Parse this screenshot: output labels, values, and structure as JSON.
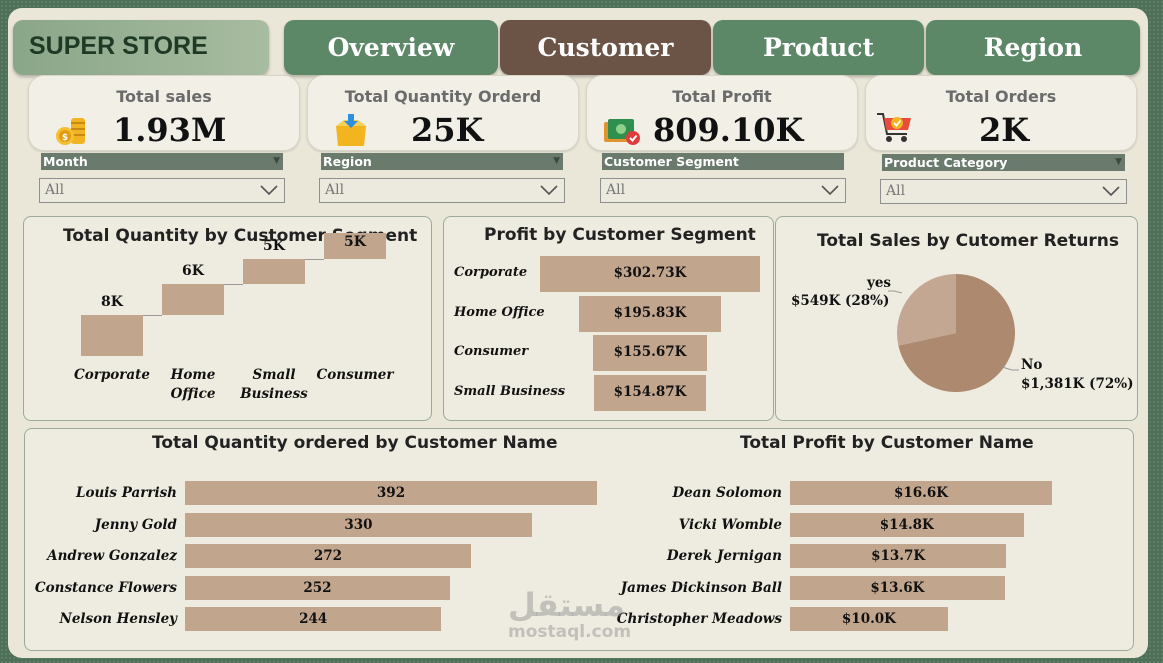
{
  "brand": "SUPER STORE",
  "nav": {
    "tabs": [
      {
        "label": "Overview",
        "active": false
      },
      {
        "label": "Customer",
        "active": true
      },
      {
        "label": "Product",
        "active": false
      },
      {
        "label": "Region",
        "active": false
      }
    ]
  },
  "kpis": [
    {
      "title": "Total sales",
      "value": "1.93M",
      "icon": "coins-icon"
    },
    {
      "title": "Total Quantity Orderd",
      "value": "25K",
      "icon": "box-icon"
    },
    {
      "title": "Total Profit",
      "value": "809.10K",
      "icon": "money-icon"
    },
    {
      "title": "Total Orders",
      "value": "2K",
      "icon": "cart-icon"
    }
  ],
  "slicers": [
    {
      "title": "Month",
      "value": "All"
    },
    {
      "title": "Region",
      "value": "All"
    },
    {
      "title": "Customer Segment",
      "value": "All"
    },
    {
      "title": "Product Category",
      "value": "All"
    }
  ],
  "colors": {
    "bar": "#c2a58d",
    "pie_no": "#ad8a6f",
    "pie_yes": "#c3a792",
    "tab_active": "#6b5446",
    "tab": "#5d8868"
  },
  "chart_data": [
    {
      "type": "bar",
      "chart": "waterfall",
      "title": "Total Quantity by Customer Segment",
      "categories": [
        "Corporate",
        "Home Office",
        "Small Business",
        "Consumer"
      ],
      "category_lines": [
        [
          "Corporate"
        ],
        [
          "Home",
          "Office"
        ],
        [
          "Small",
          "Business"
        ],
        [
          "Consumer"
        ]
      ],
      "values": [
        8,
        6,
        5,
        5
      ],
      "labels": [
        "8K",
        "6K",
        "5K",
        "5K"
      ]
    },
    {
      "type": "bar",
      "chart": "funnel",
      "title": "Profit by Customer Segment",
      "categories": [
        "Corporate",
        "Home Office",
        "Consumer",
        "Small Business"
      ],
      "values": [
        302.73,
        195.83,
        155.67,
        154.87
      ],
      "labels": [
        "$302.73K",
        "$195.83K",
        "$155.67K",
        "$154.87K"
      ]
    },
    {
      "type": "pie",
      "title": "Total Sales by Cutomer Returns",
      "categories": [
        "No",
        "yes"
      ],
      "values": [
        1381,
        549
      ],
      "percent": [
        72,
        28
      ],
      "labels": [
        "$1,381K (72%)",
        "$549K (28%)"
      ]
    },
    {
      "type": "bar",
      "chart": "horizontal",
      "title": "Total Quantity ordered by Customer Name",
      "categories": [
        "Louis Parrish",
        "Jenny Gold",
        "Andrew Gonzalez",
        "Constance Flowers",
        "Nelson Hensley"
      ],
      "values": [
        392,
        330,
        272,
        252,
        244
      ],
      "labels": [
        "392",
        "330",
        "272",
        "252",
        "244"
      ]
    },
    {
      "type": "bar",
      "chart": "horizontal",
      "title": "Total Profit by Customer Name",
      "categories": [
        "Dean Solomon",
        "Vicki Womble",
        "Derek Jernigan",
        "James Dickinson Ball",
        "Christopher Meadows"
      ],
      "values": [
        16.6,
        14.8,
        13.7,
        13.6,
        10.0
      ],
      "labels": [
        "$16.6K",
        "$14.8K",
        "$13.7K",
        "$13.6K",
        "$10.0K"
      ]
    }
  ],
  "watermark": {
    "arabic": "مستقل",
    "latin": "mostaql.com"
  }
}
